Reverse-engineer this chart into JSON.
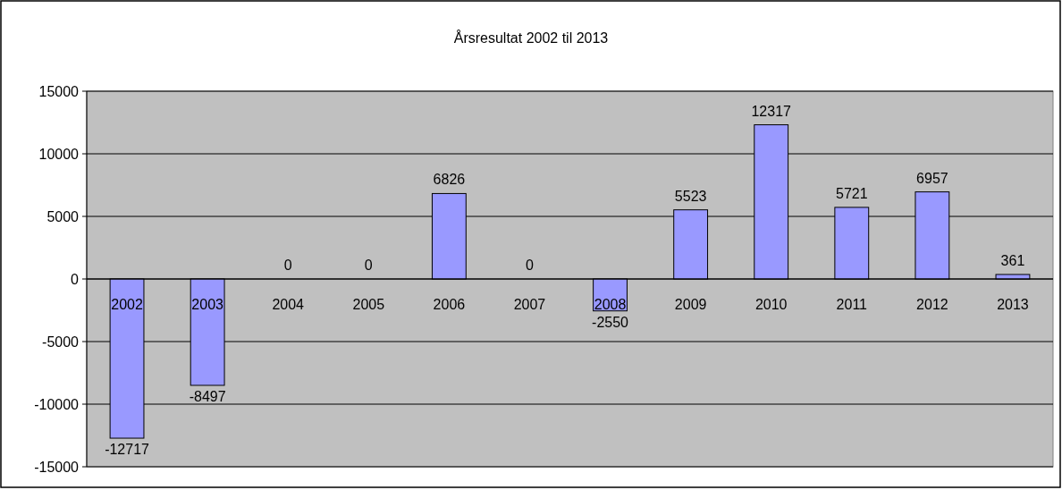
{
  "chart_data": {
    "type": "bar",
    "title": "Årsresultat 2002 til 2013",
    "categories": [
      "2002",
      "2003",
      "2004",
      "2005",
      "2006",
      "2007",
      "2008",
      "2009",
      "2010",
      "2011",
      "2012",
      "2013"
    ],
    "values": [
      -12717,
      -8497,
      0,
      0,
      6826,
      0,
      -2550,
      5523,
      12317,
      5721,
      6957,
      361
    ],
    "color": "#9999ff",
    "ylim": [
      -15000,
      15000
    ],
    "yticks": [
      -15000,
      -10000,
      -5000,
      0,
      5000,
      10000,
      15000
    ],
    "grid": "y",
    "data_labels": true
  }
}
